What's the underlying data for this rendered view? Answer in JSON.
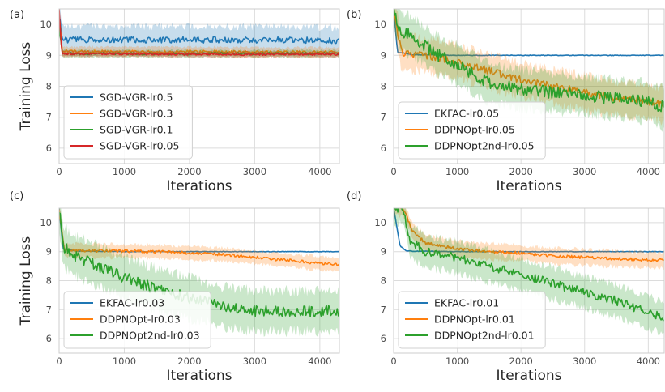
{
  "chart_data": [
    {
      "panel_label": "(a)",
      "type": "line",
      "xlabel": "Iterations",
      "ylabel": "Training Loss",
      "xlim": [
        0,
        4300
      ],
      "ylim": [
        5.5,
        10.5
      ],
      "xticks": [
        0,
        1000,
        2000,
        3000,
        4000
      ],
      "yticks": [
        6,
        7,
        8,
        9,
        10
      ],
      "grid": true,
      "legend_position": "lower-left",
      "series": [
        {
          "name": "SGD-VGR-lr0.5",
          "color": "#1f77b4",
          "points": [
            [
              0,
              10.3
            ],
            [
              50,
              9.5
            ],
            [
              500,
              9.5
            ],
            [
              1000,
              9.5
            ],
            [
              2000,
              9.5
            ],
            [
              3000,
              9.5
            ],
            [
              4300,
              9.48
            ]
          ],
          "noise": 0.1,
          "band": 0.55,
          "seed": 1
        },
        {
          "name": "SGD-VGR-lr0.3",
          "color": "#ff7f0e",
          "points": [
            [
              0,
              10.3
            ],
            [
              50,
              9.12
            ],
            [
              1000,
              9.12
            ],
            [
              2000,
              9.12
            ],
            [
              3000,
              9.1
            ],
            [
              4300,
              9.1
            ]
          ],
          "noise": 0.05,
          "band": 0.2,
          "seed": 2
        },
        {
          "name": "SGD-VGR-lr0.1",
          "color": "#2ca02c",
          "points": [
            [
              0,
              9.9
            ],
            [
              50,
              9.05
            ],
            [
              1000,
              9.05
            ],
            [
              2000,
              9.05
            ],
            [
              3000,
              9.05
            ],
            [
              4300,
              9.05
            ]
          ],
          "noise": 0.04,
          "band": 0.15,
          "seed": 3
        },
        {
          "name": "SGD-VGR-lr0.05",
          "color": "#d62728",
          "points": [
            [
              0,
              10.5
            ],
            [
              40,
              9.05
            ],
            [
              1000,
              9.05
            ],
            [
              2000,
              9.03
            ],
            [
              3000,
              9.03
            ],
            [
              4300,
              9.03
            ]
          ],
          "noise": 0.03,
          "band": 0.12,
          "seed": 4
        }
      ]
    },
    {
      "panel_label": "(b)",
      "type": "line",
      "xlabel": "Iterations",
      "ylabel": "",
      "xlim": [
        0,
        4250
      ],
      "ylim": [
        5.5,
        10.5
      ],
      "xticks": [
        0,
        1000,
        2000,
        3000,
        4000
      ],
      "yticks": [
        6,
        7,
        8,
        9,
        10
      ],
      "grid": true,
      "legend_position": "lower-left",
      "series": [
        {
          "name": "EKFAC-lr0.05",
          "color": "#1f77b4",
          "points": [
            [
              0,
              10.5
            ],
            [
              60,
              9.1
            ],
            [
              300,
              9.02
            ],
            [
              1000,
              9.0
            ],
            [
              2000,
              9.0
            ],
            [
              4250,
              9.0
            ]
          ],
          "noise": 0.01,
          "band": 0.02,
          "seed": 5
        },
        {
          "name": "DDPNOpt-lr0.05",
          "color": "#ff7f0e",
          "points": [
            [
              0,
              10.5
            ],
            [
              120,
              9.1
            ],
            [
              500,
              9.0
            ],
            [
              1000,
              8.8
            ],
            [
              1500,
              8.5
            ],
            [
              2000,
              8.2
            ],
            [
              2500,
              8.0
            ],
            [
              3000,
              7.8
            ],
            [
              3500,
              7.6
            ],
            [
              4000,
              7.5
            ],
            [
              4250,
              7.4
            ]
          ],
          "noise": 0.12,
          "band": 0.7,
          "seed": 6
        },
        {
          "name": "DDPNOpt2nd-lr0.05",
          "color": "#2ca02c",
          "points": [
            [
              0,
              10.5
            ],
            [
              100,
              9.8
            ],
            [
              300,
              9.6
            ],
            [
              700,
              9.0
            ],
            [
              1000,
              8.7
            ],
            [
              1500,
              8.1
            ],
            [
              2000,
              7.9
            ],
            [
              2500,
              7.8
            ],
            [
              3000,
              7.7
            ],
            [
              3500,
              7.6
            ],
            [
              4000,
              7.5
            ],
            [
              4250,
              7.3
            ]
          ],
          "noise": 0.2,
          "band": 0.8,
          "seed": 7
        }
      ]
    },
    {
      "panel_label": "(c)",
      "type": "line",
      "xlabel": "Iterations",
      "ylabel": "Training Loss",
      "xlim": [
        0,
        4300
      ],
      "ylim": [
        5.5,
        10.5
      ],
      "xticks": [
        0,
        1000,
        2000,
        3000,
        4000
      ],
      "yticks": [
        6,
        7,
        8,
        9,
        10
      ],
      "grid": true,
      "legend_position": "lower-left",
      "series": [
        {
          "name": "EKFAC-lr0.03",
          "color": "#1f77b4",
          "points": [
            [
              0,
              10.5
            ],
            [
              60,
              9.1
            ],
            [
              300,
              9.02
            ],
            [
              1000,
              9.0
            ],
            [
              2000,
              9.0
            ],
            [
              4300,
              9.0
            ]
          ],
          "noise": 0.01,
          "band": 0.02,
          "seed": 8
        },
        {
          "name": "DDPNOpt-lr0.03",
          "color": "#ff7f0e",
          "points": [
            [
              0,
              10.5
            ],
            [
              80,
              9.05
            ],
            [
              1500,
              9.0
            ],
            [
              2000,
              8.95
            ],
            [
              2500,
              8.9
            ],
            [
              3000,
              8.8
            ],
            [
              3500,
              8.7
            ],
            [
              4000,
              8.6
            ],
            [
              4300,
              8.55
            ]
          ],
          "noise": 0.05,
          "band": 0.3,
          "seed": 9
        },
        {
          "name": "DDPNOpt2nd-lr0.03",
          "color": "#2ca02c",
          "points": [
            [
              0,
              10.5
            ],
            [
              60,
              9.2
            ],
            [
              200,
              8.9
            ],
            [
              500,
              8.6
            ],
            [
              1000,
              8.1
            ],
            [
              1500,
              7.7
            ],
            [
              2000,
              7.4
            ],
            [
              2500,
              7.1
            ],
            [
              3000,
              6.95
            ],
            [
              3500,
              6.95
            ],
            [
              4000,
              6.95
            ],
            [
              4300,
              6.95
            ]
          ],
          "noise": 0.2,
          "band": 0.9,
          "seed": 10
        }
      ]
    },
    {
      "panel_label": "(d)",
      "type": "line",
      "xlabel": "Iterations",
      "ylabel": "",
      "xlim": [
        0,
        4250
      ],
      "ylim": [
        5.5,
        10.5
      ],
      "xticks": [
        0,
        1000,
        2000,
        3000,
        4000
      ],
      "yticks": [
        6,
        7,
        8,
        9,
        10
      ],
      "grid": true,
      "legend_position": "lower-left",
      "series": [
        {
          "name": "EKFAC-lr0.01",
          "color": "#1f77b4",
          "points": [
            [
              0,
              10.5
            ],
            [
              100,
              9.2
            ],
            [
              200,
              9.02
            ],
            [
              1000,
              9.0
            ],
            [
              2000,
              9.0
            ],
            [
              4250,
              9.0
            ]
          ],
          "noise": 0.01,
          "band": 0.02,
          "seed": 11
        },
        {
          "name": "DDPNOpt-lr0.01",
          "color": "#ff7f0e",
          "points": [
            [
              150,
              10.5
            ],
            [
              300,
              9.7
            ],
            [
              500,
              9.3
            ],
            [
              1000,
              9.1
            ],
            [
              1500,
              9.0
            ],
            [
              2000,
              8.95
            ],
            [
              2500,
              8.85
            ],
            [
              3000,
              8.8
            ],
            [
              3500,
              8.75
            ],
            [
              4250,
              8.7
            ]
          ],
          "noise": 0.05,
          "band": 0.35,
          "seed": 12
        },
        {
          "name": "DDPNOpt2nd-lr0.01",
          "color": "#2ca02c",
          "points": [
            [
              150,
              10.5
            ],
            [
              250,
              9.4
            ],
            [
              500,
              9.0
            ],
            [
              1000,
              8.8
            ],
            [
              1500,
              8.5
            ],
            [
              2000,
              8.2
            ],
            [
              2500,
              7.9
            ],
            [
              3000,
              7.6
            ],
            [
              3500,
              7.3
            ],
            [
              4000,
              6.9
            ],
            [
              4250,
              6.7
            ]
          ],
          "noise": 0.15,
          "band": 0.7,
          "seed": 13
        }
      ]
    }
  ]
}
